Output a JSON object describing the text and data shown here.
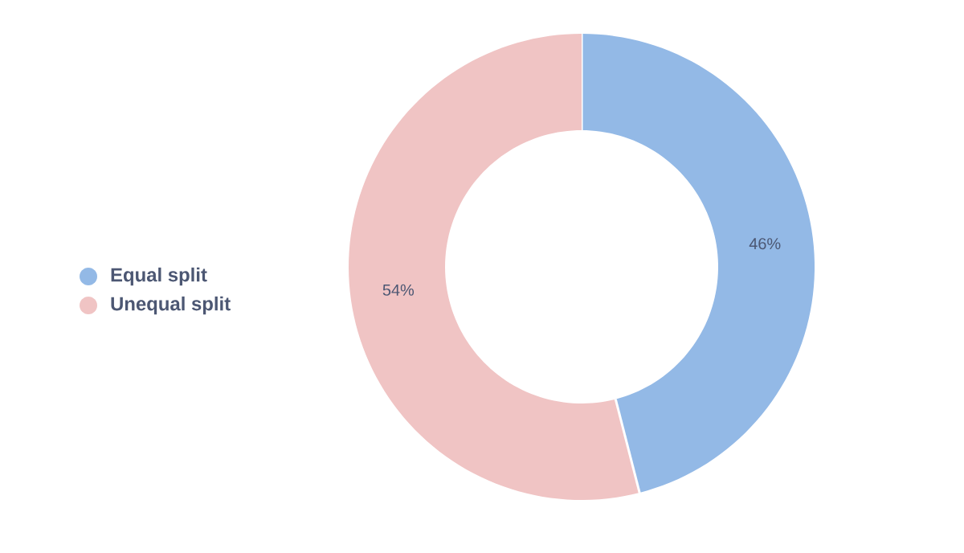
{
  "chart_data": {
    "type": "donut",
    "categories": [
      "Equal split",
      "Unequal split"
    ],
    "values": [
      46,
      54
    ],
    "value_labels": [
      "46%",
      "54%"
    ],
    "colors": [
      "#93b9e6",
      "#f0c4c4"
    ],
    "legend": "left"
  }
}
